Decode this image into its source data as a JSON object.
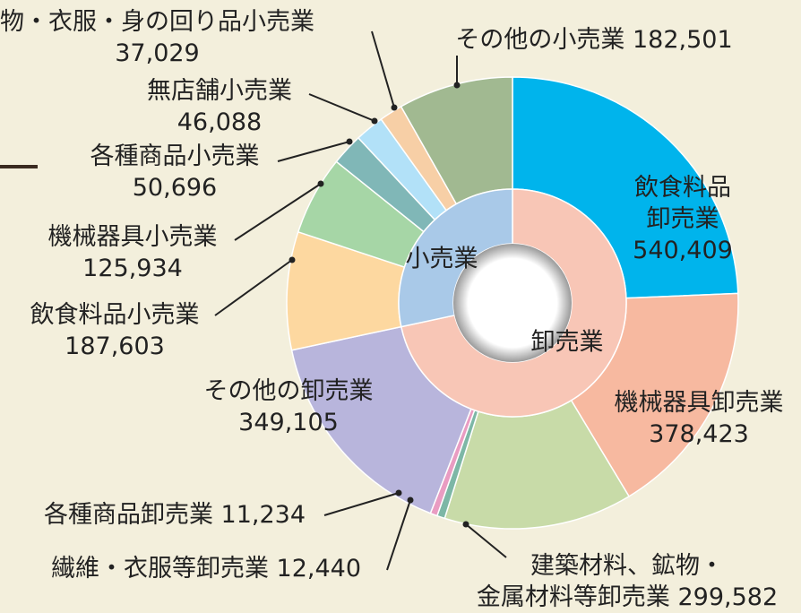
{
  "chart_data": {
    "type": "sunburst",
    "groups": [
      {
        "name": "卸売業",
        "color": "#f8c6b6",
        "children": [
          {
            "name": "飲食料品卸売業",
            "value": 540409,
            "value_label": "540,409",
            "color": "#00b4ec"
          },
          {
            "name": "機械器具卸売業",
            "value": 378423,
            "value_label": "378,423",
            "color": "#f7b9a0"
          },
          {
            "name": "建築材料、鉱物・金属材料等卸売業",
            "value": 299582,
            "value_label": "299,582",
            "color": "#c8dba8"
          },
          {
            "name": "繊維・衣服等卸売業",
            "value": 12440,
            "value_label": "12,440",
            "color": "#7db7a6"
          },
          {
            "name": "各種商品卸売業",
            "value": 11234,
            "value_label": "11,234",
            "color": "#e99cc2"
          },
          {
            "name": "その他の卸売業",
            "value": 349105,
            "value_label": "349,105",
            "color": "#b8b5dc"
          }
        ]
      },
      {
        "name": "小売業",
        "color": "#a9c9e8",
        "children": [
          {
            "name": "飲食料品小売業",
            "value": 187603,
            "value_label": "187,603",
            "color": "#fdd8a0"
          },
          {
            "name": "機械器具小売業",
            "value": 125934,
            "value_label": "125,934",
            "color": "#a6d6a6"
          },
          {
            "name": "各種商品小売業",
            "value": 50696,
            "value_label": "50,696",
            "color": "#80b7b7"
          },
          {
            "name": "無店舗小売業",
            "value": 46088,
            "value_label": "46,088",
            "color": "#b2e1f8"
          },
          {
            "name": "物・衣服・身の回り品小売業",
            "value": 37029,
            "value_label": "37,029",
            "color": "#f7cfa6"
          },
          {
            "name": "その他の小売業",
            "value": 182501,
            "value_label": "182,501",
            "color": "#a1b991"
          }
        ]
      }
    ]
  }
}
